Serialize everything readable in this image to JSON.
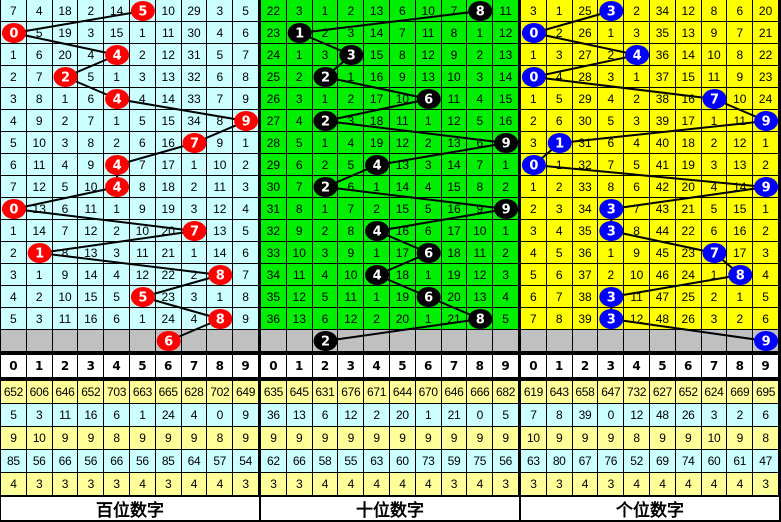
{
  "chart_data": {
    "type": "table",
    "panels": [
      {
        "title": "百位数字",
        "bg_color": "#ccffff",
        "ball_color": "#ff0000",
        "header": [
          "0",
          "1",
          "2",
          "3",
          "4",
          "5",
          "6",
          "7",
          "8",
          "9"
        ],
        "draws": [
          5,
          0,
          4,
          2,
          4,
          9,
          7,
          4,
          4,
          0,
          7,
          1,
          8,
          5,
          8
        ],
        "prediction": 6,
        "rows": [
          [
            7,
            4,
            18,
            2,
            14,
            5,
            10,
            29,
            3,
            5
          ],
          [
            0,
            5,
            19,
            3,
            15,
            1,
            11,
            30,
            4,
            6
          ],
          [
            1,
            6,
            20,
            4,
            4,
            2,
            12,
            31,
            5,
            7
          ],
          [
            2,
            7,
            2,
            5,
            1,
            3,
            13,
            32,
            6,
            8
          ],
          [
            3,
            8,
            1,
            6,
            4,
            4,
            14,
            33,
            7,
            9
          ],
          [
            4,
            9,
            2,
            7,
            1,
            5,
            15,
            34,
            8,
            9
          ],
          [
            5,
            10,
            3,
            8,
            2,
            6,
            16,
            7,
            9,
            1
          ],
          [
            6,
            11,
            4,
            9,
            4,
            7,
            17,
            1,
            10,
            2
          ],
          [
            7,
            12,
            5,
            10,
            4,
            8,
            18,
            2,
            11,
            3
          ],
          [
            0,
            13,
            6,
            11,
            1,
            9,
            19,
            3,
            12,
            4
          ],
          [
            1,
            14,
            7,
            12,
            2,
            10,
            20,
            7,
            13,
            5
          ],
          [
            2,
            1,
            8,
            13,
            3,
            11,
            21,
            1,
            14,
            6
          ],
          [
            3,
            1,
            9,
            14,
            4,
            12,
            22,
            2,
            8,
            7
          ],
          [
            4,
            2,
            10,
            15,
            5,
            5,
            23,
            3,
            1,
            8
          ],
          [
            5,
            3,
            11,
            16,
            6,
            1,
            24,
            4,
            8,
            9
          ]
        ],
        "stats": [
          [
            652,
            606,
            646,
            652,
            703,
            663,
            665,
            628,
            702,
            649
          ],
          [
            5,
            3,
            11,
            16,
            6,
            1,
            24,
            4,
            0,
            9
          ],
          [
            9,
            10,
            9,
            9,
            8,
            9,
            9,
            9,
            8,
            9
          ],
          [
            85,
            56,
            66,
            56,
            66,
            56,
            85,
            64,
            57,
            54
          ],
          [
            4,
            3,
            3,
            3,
            3,
            4,
            3,
            4,
            4,
            3
          ]
        ]
      },
      {
        "title": "十位数字",
        "bg_color": "#00ee00",
        "ball_color": "#000000",
        "header": [
          "0",
          "1",
          "2",
          "3",
          "4",
          "5",
          "6",
          "7",
          "8",
          "9"
        ],
        "draws": [
          8,
          1,
          3,
          2,
          6,
          2,
          9,
          4,
          2,
          9,
          4,
          6,
          4,
          6,
          8
        ],
        "prediction": 2,
        "rows": [
          [
            22,
            3,
            1,
            2,
            13,
            6,
            10,
            7,
            8,
            11
          ],
          [
            23,
            1,
            2,
            3,
            14,
            7,
            11,
            8,
            1,
            12
          ],
          [
            24,
            1,
            3,
            3,
            15,
            8,
            12,
            9,
            2,
            13
          ],
          [
            25,
            2,
            2,
            1,
            16,
            9,
            13,
            10,
            3,
            14
          ],
          [
            26,
            3,
            1,
            2,
            17,
            10,
            6,
            11,
            4,
            15
          ],
          [
            27,
            4,
            2,
            3,
            18,
            11,
            1,
            12,
            5,
            16
          ],
          [
            28,
            5,
            1,
            4,
            19,
            12,
            2,
            13,
            6,
            9
          ],
          [
            29,
            6,
            2,
            5,
            4,
            13,
            3,
            14,
            7,
            1
          ],
          [
            30,
            7,
            2,
            6,
            1,
            14,
            4,
            15,
            8,
            2
          ],
          [
            31,
            8,
            1,
            7,
            2,
            15,
            5,
            16,
            9,
            9
          ],
          [
            32,
            9,
            2,
            8,
            4,
            16,
            6,
            17,
            10,
            1
          ],
          [
            33,
            10,
            3,
            9,
            1,
            17,
            6,
            18,
            11,
            2
          ],
          [
            34,
            11,
            4,
            10,
            4,
            18,
            1,
            19,
            12,
            3
          ],
          [
            35,
            12,
            5,
            11,
            1,
            19,
            6,
            20,
            13,
            4
          ],
          [
            36,
            13,
            6,
            12,
            2,
            20,
            1,
            21,
            8,
            5
          ]
        ],
        "stats": [
          [
            635,
            645,
            631,
            676,
            671,
            644,
            670,
            646,
            666,
            682
          ],
          [
            36,
            13,
            6,
            12,
            2,
            20,
            1,
            21,
            0,
            5
          ],
          [
            9,
            9,
            9,
            9,
            9,
            9,
            9,
            9,
            9,
            9
          ],
          [
            62,
            66,
            58,
            55,
            63,
            60,
            73,
            59,
            75,
            56
          ],
          [
            3,
            3,
            4,
            4,
            4,
            4,
            4,
            3,
            4,
            3
          ]
        ]
      },
      {
        "title": "个位数字",
        "bg_color": "#ffff00",
        "ball_color": "#0000ff",
        "header": [
          "0",
          "1",
          "2",
          "3",
          "4",
          "5",
          "6",
          "7",
          "8",
          "9"
        ],
        "draws": [
          3,
          0,
          4,
          0,
          7,
          9,
          1,
          0,
          9,
          3,
          3,
          7,
          8,
          3,
          3
        ],
        "prediction": 9,
        "rows": [
          [
            3,
            1,
            25,
            3,
            2,
            34,
            12,
            8,
            6,
            20
          ],
          [
            0,
            2,
            26,
            1,
            3,
            35,
            13,
            9,
            7,
            21
          ],
          [
            1,
            3,
            27,
            2,
            4,
            36,
            14,
            10,
            8,
            22
          ],
          [
            0,
            4,
            28,
            3,
            1,
            37,
            15,
            11,
            9,
            23
          ],
          [
            1,
            5,
            29,
            4,
            2,
            38,
            16,
            7,
            10,
            24
          ],
          [
            2,
            6,
            30,
            5,
            3,
            39,
            17,
            1,
            11,
            9
          ],
          [
            3,
            1,
            31,
            6,
            4,
            40,
            18,
            2,
            12,
            1
          ],
          [
            0,
            1,
            32,
            7,
            5,
            41,
            19,
            3,
            13,
            2
          ],
          [
            1,
            2,
            33,
            8,
            6,
            42,
            20,
            4,
            14,
            9
          ],
          [
            2,
            3,
            34,
            3,
            7,
            43,
            21,
            5,
            15,
            1
          ],
          [
            3,
            4,
            35,
            3,
            8,
            44,
            22,
            6,
            16,
            2
          ],
          [
            4,
            5,
            36,
            1,
            9,
            45,
            23,
            7,
            17,
            3
          ],
          [
            5,
            6,
            37,
            2,
            10,
            46,
            24,
            1,
            8,
            4
          ],
          [
            6,
            7,
            38,
            3,
            11,
            47,
            25,
            2,
            1,
            5
          ],
          [
            7,
            8,
            39,
            3,
            12,
            48,
            26,
            3,
            2,
            6
          ]
        ],
        "stats": [
          [
            619,
            643,
            658,
            647,
            732,
            627,
            652,
            624,
            669,
            695
          ],
          [
            7,
            8,
            39,
            0,
            12,
            48,
            26,
            3,
            2,
            6
          ],
          [
            10,
            9,
            9,
            9,
            8,
            9,
            9,
            10,
            9,
            8
          ],
          [
            63,
            80,
            67,
            76,
            52,
            69,
            74,
            60,
            61,
            47
          ],
          [
            3,
            3,
            4,
            3,
            4,
            4,
            4,
            4,
            4,
            3
          ]
        ]
      }
    ],
    "stat_row_colors": [
      "#ffff99",
      "#ccffff",
      "#ffff99",
      "#ccffff",
      "#ffff99"
    ],
    "empty_row_color": "#c0c0c0"
  }
}
